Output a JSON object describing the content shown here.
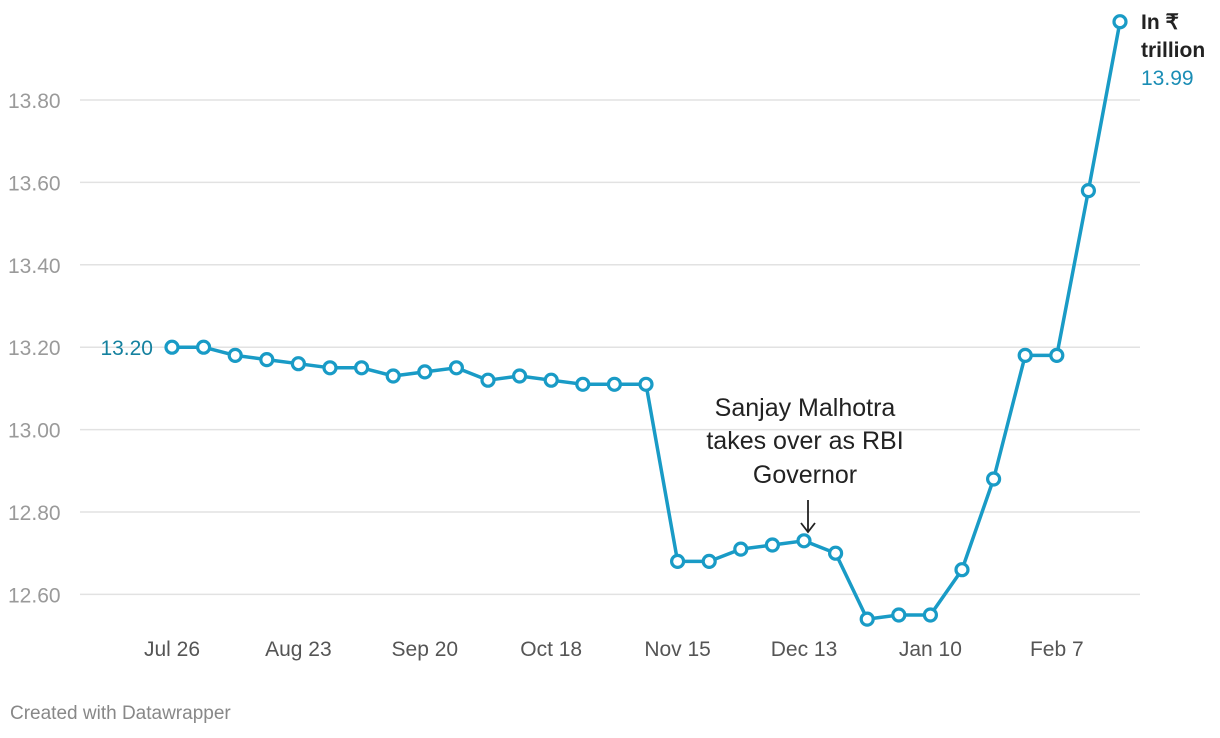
{
  "chart_data": {
    "type": "line",
    "title": "",
    "xlabel": "",
    "ylabel": "",
    "x_tick_labels": [
      "Jul 26",
      "Aug 23",
      "Sep 20",
      "Oct 18",
      "Nov 15",
      "Dec 13",
      "Jan 10",
      "Feb 7"
    ],
    "y_tick_labels": [
      "12.60",
      "12.80",
      "13.00",
      "13.20",
      "13.40",
      "13.60",
      "13.80"
    ],
    "ylim": [
      12.55,
      14.0
    ],
    "grid": true,
    "series": [
      {
        "color": "#199bc6",
        "x": [
          "2024-07-26",
          "2024-08-02",
          "2024-08-09",
          "2024-08-16",
          "2024-08-23",
          "2024-08-30",
          "2024-09-06",
          "2024-09-13",
          "2024-09-20",
          "2024-09-27",
          "2024-10-04",
          "2024-10-11",
          "2024-10-18",
          "2024-10-25",
          "2024-11-01",
          "2024-11-08",
          "2024-11-15",
          "2024-11-22",
          "2024-11-29",
          "2024-12-06",
          "2024-12-13",
          "2024-12-20",
          "2024-12-27",
          "2025-01-03",
          "2025-01-10",
          "2025-01-17",
          "2025-01-24",
          "2025-01-31",
          "2025-02-07",
          "2025-02-14",
          "2025-02-21"
        ],
        "values": [
          13.2,
          13.2,
          13.18,
          13.17,
          13.16,
          13.15,
          13.15,
          13.13,
          13.14,
          13.15,
          13.12,
          13.13,
          13.12,
          13.11,
          13.11,
          13.11,
          12.68,
          12.68,
          12.71,
          12.72,
          12.73,
          12.7,
          12.54,
          12.55,
          12.55,
          12.66,
          12.88,
          13.18,
          13.18,
          13.58,
          13.99
        ]
      }
    ],
    "start_label": "13.20",
    "end_label": {
      "unit": "In ₹ trillion",
      "unit_line1": "In ₹",
      "unit_line2": "trillion",
      "value": "13.99"
    },
    "annotations": [
      {
        "lines": [
          "Sanjay Malhotra",
          "takes over as RBI",
          "Governor"
        ],
        "x": "2024-12-13"
      }
    ]
  },
  "footer": {
    "credit": "Created with Datawrapper"
  }
}
